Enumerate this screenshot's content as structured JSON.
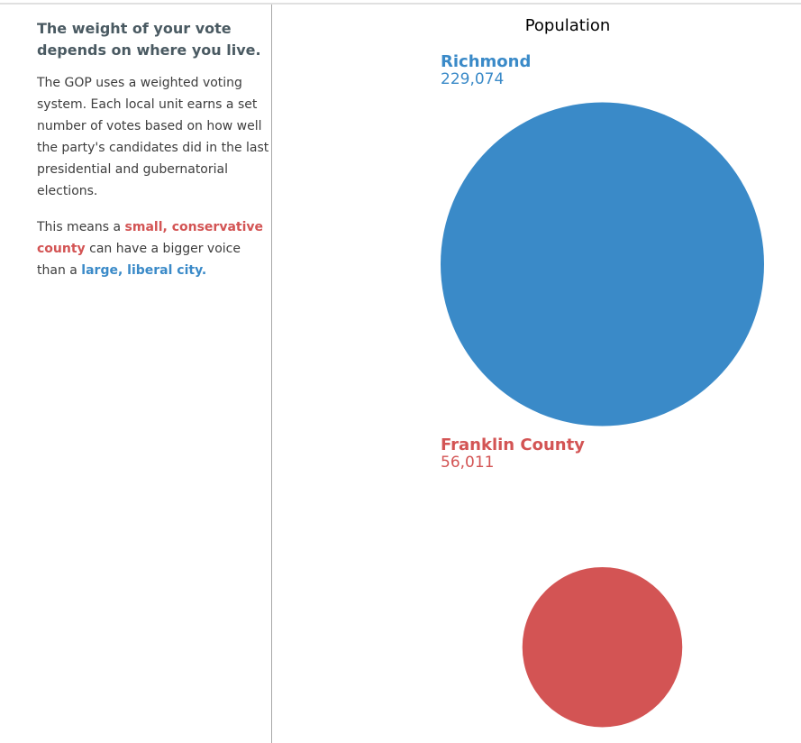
{
  "sidebar": {
    "heading": "The weight of your vote depends on where you live.",
    "paragraph1": "The GOP uses a weighted voting system. Each local unit earns a set number of votes based on how well the party's candidates did in the last presidential and gubernatorial elections.",
    "paragraph2_prefix": "This means a ",
    "paragraph2_red": "small, conservative county",
    "paragraph2_middle": " can have a bigger voice than a ",
    "paragraph2_blue": "large, liberal city.",
    "red_color": "#d35454",
    "blue_color": "#3a8ac8"
  },
  "chart_data": {
    "type": "bubble",
    "title": "Population",
    "series": [
      {
        "name": "Richmond",
        "value": 229074,
        "label": "229,074",
        "color": "#3a8ac8"
      },
      {
        "name": "Franklin County",
        "value": 56011,
        "label": "56,011",
        "color": "#d35454"
      }
    ]
  }
}
